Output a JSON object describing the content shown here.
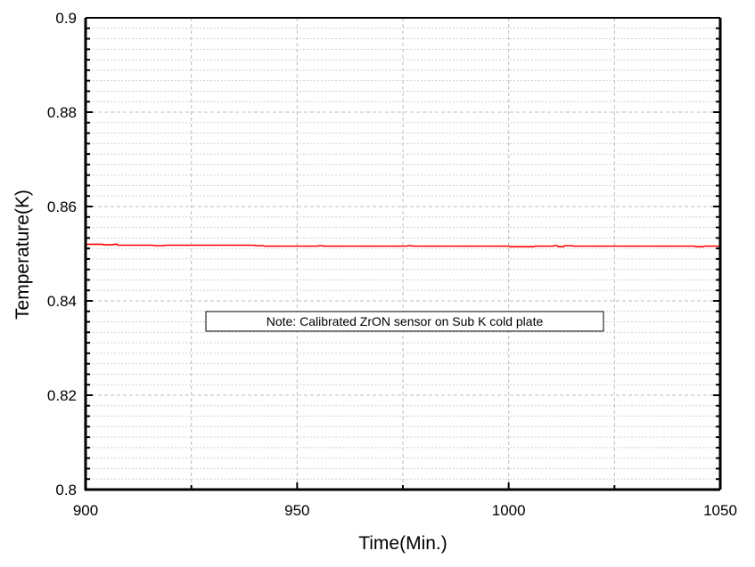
{
  "chart_data": {
    "type": "line",
    "title": "",
    "xlabel": "Time(Min.)",
    "ylabel": "Temperature(K)",
    "xlim": [
      900,
      1050
    ],
    "ylim": [
      0.8,
      0.9
    ],
    "x_ticks": [
      "900",
      "950",
      "1000",
      "1050"
    ],
    "y_ticks": [
      "0.8",
      "0.82",
      "0.84",
      "0.86",
      "0.88",
      "0.9"
    ],
    "grid": true,
    "annotation": "Note: Calibrated ZrON sensor on Sub K cold plate",
    "series": [
      {
        "color": "#ff0000",
        "x": [
          900,
          904,
          904.2,
          906.5,
          906.7,
          907.5,
          907.7,
          916,
          916.2,
          918.5,
          918.7,
          940,
          940.2,
          942,
          942.2,
          955,
          955.2,
          956,
          956.2,
          976,
          976.2,
          977,
          977.2,
          1000,
          1000.2,
          1006,
          1006.2,
          1010.5,
          1010.7,
          1011.5,
          1011.7,
          1013,
          1013.2,
          1015,
          1015.2,
          1044,
          1044.2,
          1046,
          1046.2,
          1050
        ],
        "y": [
          0.852,
          0.852,
          0.8519,
          0.8519,
          0.852,
          0.852,
          0.8518,
          0.8518,
          0.8517,
          0.8517,
          0.8518,
          0.8518,
          0.8517,
          0.8517,
          0.8516,
          0.8516,
          0.8517,
          0.8517,
          0.8516,
          0.8516,
          0.8517,
          0.8517,
          0.8516,
          0.8516,
          0.8515,
          0.8515,
          0.8516,
          0.8516,
          0.8517,
          0.8517,
          0.8515,
          0.8515,
          0.8517,
          0.8517,
          0.8516,
          0.8516,
          0.8515,
          0.8515,
          0.8516,
          0.8516
        ]
      }
    ]
  }
}
